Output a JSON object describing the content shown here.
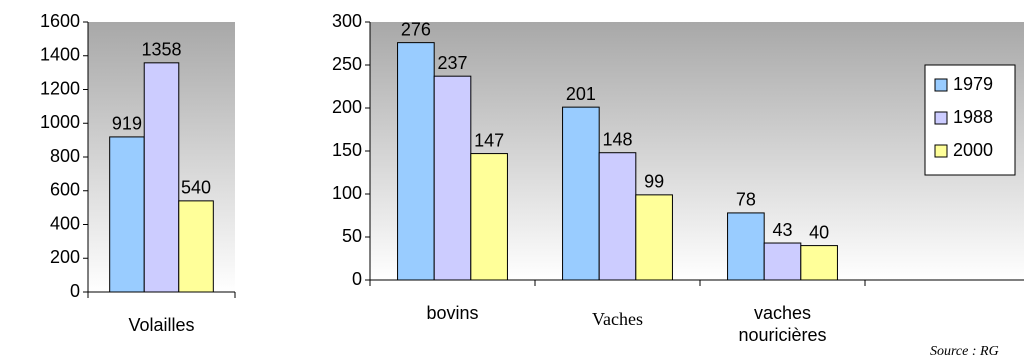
{
  "chart_data": [
    {
      "type": "bar",
      "categories": [
        "Volailles"
      ],
      "series": [
        {
          "name": "1979",
          "color": "#99ccff",
          "values": [
            919
          ]
        },
        {
          "name": "1988",
          "color": "#ccccff",
          "values": [
            1358
          ]
        },
        {
          "name": "2000",
          "color": "#ffff99",
          "values": [
            540
          ]
        }
      ],
      "ylim": [
        0,
        1600
      ],
      "yticks": [
        0,
        200,
        400,
        600,
        800,
        1000,
        1200,
        1400,
        1600
      ]
    },
    {
      "type": "bar",
      "categories": [
        "bovins",
        "Vaches",
        "vaches nouricières",
        null
      ],
      "series": [
        {
          "name": "1979",
          "color": "#99ccff",
          "values": [
            276,
            201,
            78,
            null
          ]
        },
        {
          "name": "1988",
          "color": "#ccccff",
          "values": [
            237,
            148,
            43,
            null
          ]
        },
        {
          "name": "2000",
          "color": "#ffff99",
          "values": [
            147,
            99,
            40,
            null
          ]
        }
      ],
      "ylim": [
        0,
        300
      ],
      "yticks": [
        0,
        50,
        100,
        150,
        200,
        250,
        300
      ],
      "legend": "right"
    }
  ],
  "note": "Source : RG"
}
